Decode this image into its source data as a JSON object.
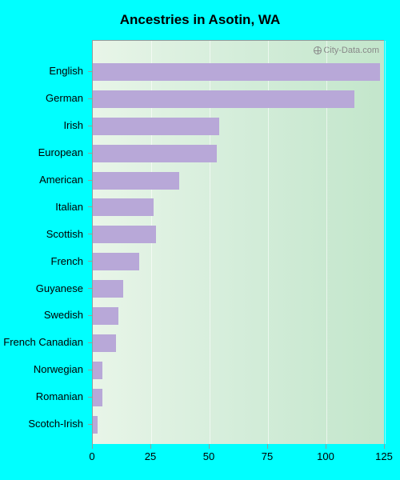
{
  "chart": {
    "type": "bar_horizontal",
    "title": "Ancestries in Asotin, WA",
    "title_fontsize": 17,
    "watermark": "City-Data.com",
    "bar_color": "#b8a8d8",
    "background_gradient": [
      "#e8f5e8",
      "#d4edda",
      "#c3e6cb"
    ],
    "page_background": "#00ffff",
    "grid_color": "rgba(255,255,255,0.6)",
    "axis_color": "#999999",
    "label_color": "#000000",
    "label_fontsize": 13,
    "xaxis": {
      "min": 0,
      "max": 125,
      "ticks": [
        0,
        25,
        50,
        75,
        100,
        125
      ]
    },
    "categories": [
      "English",
      "German",
      "Irish",
      "European",
      "American",
      "Italian",
      "Scottish",
      "French",
      "Guyanese",
      "Swedish",
      "French Canadian",
      "Norwegian",
      "Romanian",
      "Scotch-Irish"
    ],
    "values": [
      123,
      112,
      54,
      53,
      37,
      26,
      27,
      20,
      13,
      11,
      10,
      4,
      4,
      2
    ]
  }
}
